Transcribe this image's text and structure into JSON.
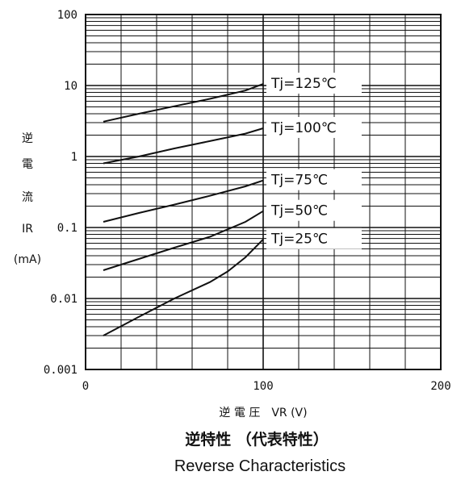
{
  "chart_data": {
    "type": "line",
    "title": "逆特性 （代表特性）",
    "subtitle": "Reverse Characteristics",
    "ylabel_lines": [
      "逆",
      "電",
      "流",
      "IR",
      "(mA)"
    ],
    "xlabel": "逆 電 圧　VR (V)",
    "y_scale": "log",
    "ylim": [
      0.001,
      100
    ],
    "xlim": [
      0,
      200
    ],
    "y_ticks": [
      "100",
      "10",
      "1",
      "0.1",
      "0.01",
      "0.001"
    ],
    "x_ticks": [
      "0",
      "100",
      "200"
    ],
    "grid": true,
    "series": [
      {
        "name": "Tj=125℃",
        "x": [
          10,
          30,
          50,
          70,
          90,
          100
        ],
        "y": [
          3.1,
          4.0,
          5.1,
          6.5,
          8.5,
          10.5
        ]
      },
      {
        "name": "Tj=100℃",
        "x": [
          10,
          30,
          50,
          70,
          90,
          100
        ],
        "y": [
          0.8,
          1.0,
          1.3,
          1.65,
          2.1,
          2.5
        ]
      },
      {
        "name": "Tj=75℃",
        "x": [
          10,
          30,
          50,
          70,
          90,
          100
        ],
        "y": [
          0.12,
          0.16,
          0.21,
          0.28,
          0.38,
          0.46
        ]
      },
      {
        "name": "Tj=50℃",
        "x": [
          10,
          30,
          50,
          70,
          90,
          100
        ],
        "y": [
          0.025,
          0.036,
          0.052,
          0.074,
          0.12,
          0.17
        ]
      },
      {
        "name": "Tj=25℃",
        "x": [
          10,
          30,
          50,
          70,
          80,
          90,
          100
        ],
        "y": [
          0.003,
          0.0055,
          0.01,
          0.017,
          0.024,
          0.038,
          0.068
        ]
      }
    ]
  }
}
